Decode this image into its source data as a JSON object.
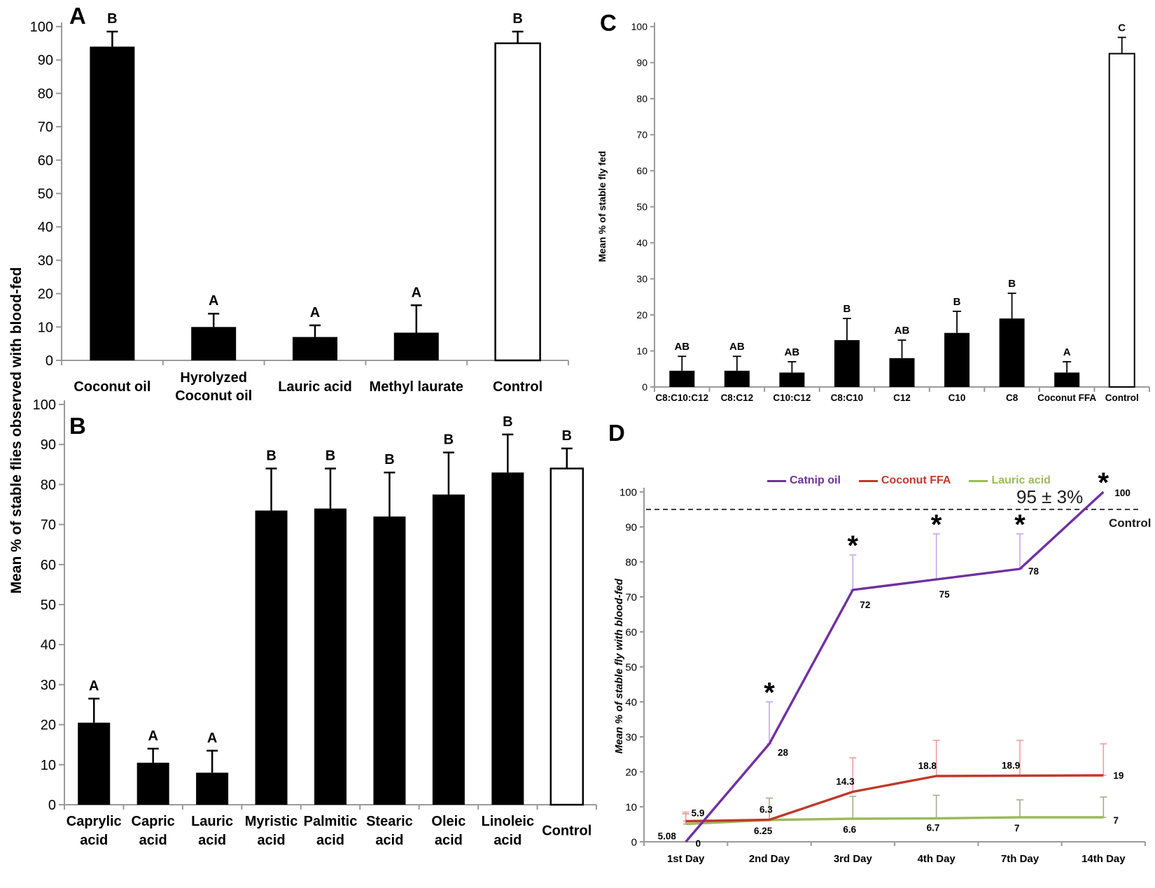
{
  "shared": {
    "ylabel_ab": "Mean % of stable flies observed with blood-fed"
  },
  "chart_data": [
    {
      "panel": "A",
      "type": "bar",
      "categories": [
        "Coconut oil",
        "Hyrolyzed\nCoconut oil",
        "Lauric acid",
        "Methyl laurate",
        "Control"
      ],
      "values": [
        94,
        10,
        7,
        8.3,
        95
      ],
      "errors_top": [
        98.5,
        14,
        10.5,
        16.5,
        98.5
      ],
      "sig_letters": [
        "B",
        "A",
        "A",
        "A",
        "B"
      ],
      "bar_fills": [
        "black",
        "black",
        "black",
        "black",
        "white"
      ],
      "ylim": [
        0,
        100
      ],
      "ytick_step": 10
    },
    {
      "panel": "B",
      "type": "bar",
      "categories": [
        "Caprylic\nacid",
        "Capric\nacid",
        "Lauric\nacid",
        "Myristic\nacid",
        "Palmitic\nacid",
        "Stearic\nacid",
        "Oleic\nacid",
        "Linoleic\nacid",
        "Control"
      ],
      "values": [
        20.5,
        10.5,
        8,
        73.5,
        74,
        72,
        77.5,
        83,
        84
      ],
      "errors_top": [
        26.5,
        14,
        13.5,
        84,
        84,
        83,
        88,
        92.5,
        89
      ],
      "sig_letters": [
        "A",
        "A",
        "A",
        "B",
        "B",
        "B",
        "B",
        "B",
        "B"
      ],
      "bar_fills": [
        "black",
        "black",
        "black",
        "black",
        "black",
        "black",
        "black",
        "black",
        "white"
      ],
      "ylim": [
        0,
        100
      ],
      "ytick_step": 10
    },
    {
      "panel": "C",
      "type": "bar",
      "ylabel": "Mean % of stable fly fed",
      "categories": [
        "C8:C10:C12",
        "C8:C12",
        "C10:C12",
        "C8:C10",
        "C12",
        "C10",
        "C8",
        "Coconut FFA",
        "Control"
      ],
      "values": [
        4.5,
        4.5,
        4,
        13,
        8,
        15,
        19,
        4,
        92.5
      ],
      "errors_top": [
        8.5,
        8.5,
        7,
        19,
        13,
        21,
        26,
        7,
        97
      ],
      "sig_letters": [
        "AB",
        "AB",
        "AB",
        "B",
        "AB",
        "B",
        "B",
        "A",
        "C"
      ],
      "bar_fills": [
        "black",
        "black",
        "black",
        "black",
        "black",
        "black",
        "black",
        "black",
        "white"
      ],
      "ylim": [
        0,
        100
      ],
      "ytick_step": 10
    },
    {
      "panel": "D",
      "type": "line",
      "ylabel": "Mean % of stable fly with blood-fed",
      "x_categories": [
        "1st Day",
        "2nd Day",
        "3rd Day",
        "4th Day",
        "7th Day",
        "14th Day"
      ],
      "ylim": [
        0,
        100
      ],
      "ytick_step": 10,
      "series": [
        {
          "name": "Catnip oil",
          "color": "#7030A0",
          "error_color": "#C9A6E3",
          "label_color": "#7030A0",
          "values": [
            0,
            28,
            72,
            75,
            78,
            100
          ],
          "errors_top": [
            null,
            40,
            82,
            88,
            88,
            null
          ],
          "point_labels": [
            "0",
            "28",
            "72",
            "75",
            "78",
            "100"
          ]
        },
        {
          "name": "Coconut FFA",
          "color": "#C0392B",
          "error_color": "#F19C9C",
          "label_color": "#E36C0A",
          "values": [
            5.9,
            6.3,
            14.3,
            18.8,
            18.9,
            19
          ],
          "errors_top": [
            8.5,
            null,
            24,
            29,
            29,
            28
          ],
          "point_labels": [
            "5.9",
            "6.3",
            "14.3",
            "18.8",
            "18.9",
            "19"
          ]
        },
        {
          "name": "Lauric acid",
          "color": "#9BBB59",
          "error_color": "#A6AD8A",
          "label_color": "#92D050",
          "values": [
            5.08,
            6.25,
            6.6,
            6.7,
            7,
            7
          ],
          "errors_top": [
            8,
            12.5,
            13,
            13.3,
            12,
            12.8
          ],
          "point_labels": [
            "5.08",
            "6.25",
            "6.6",
            "6.7",
            "7",
            "7"
          ]
        }
      ],
      "asterisks": {
        "symbol": "*",
        "day_indices": [
          1,
          2,
          3,
          4,
          5
        ],
        "y_values": [
          44,
          86,
          92,
          92,
          104
        ]
      },
      "annotation": {
        "text": "95 ± 3%",
        "line_value": 95,
        "control_label": "Control"
      }
    }
  ]
}
